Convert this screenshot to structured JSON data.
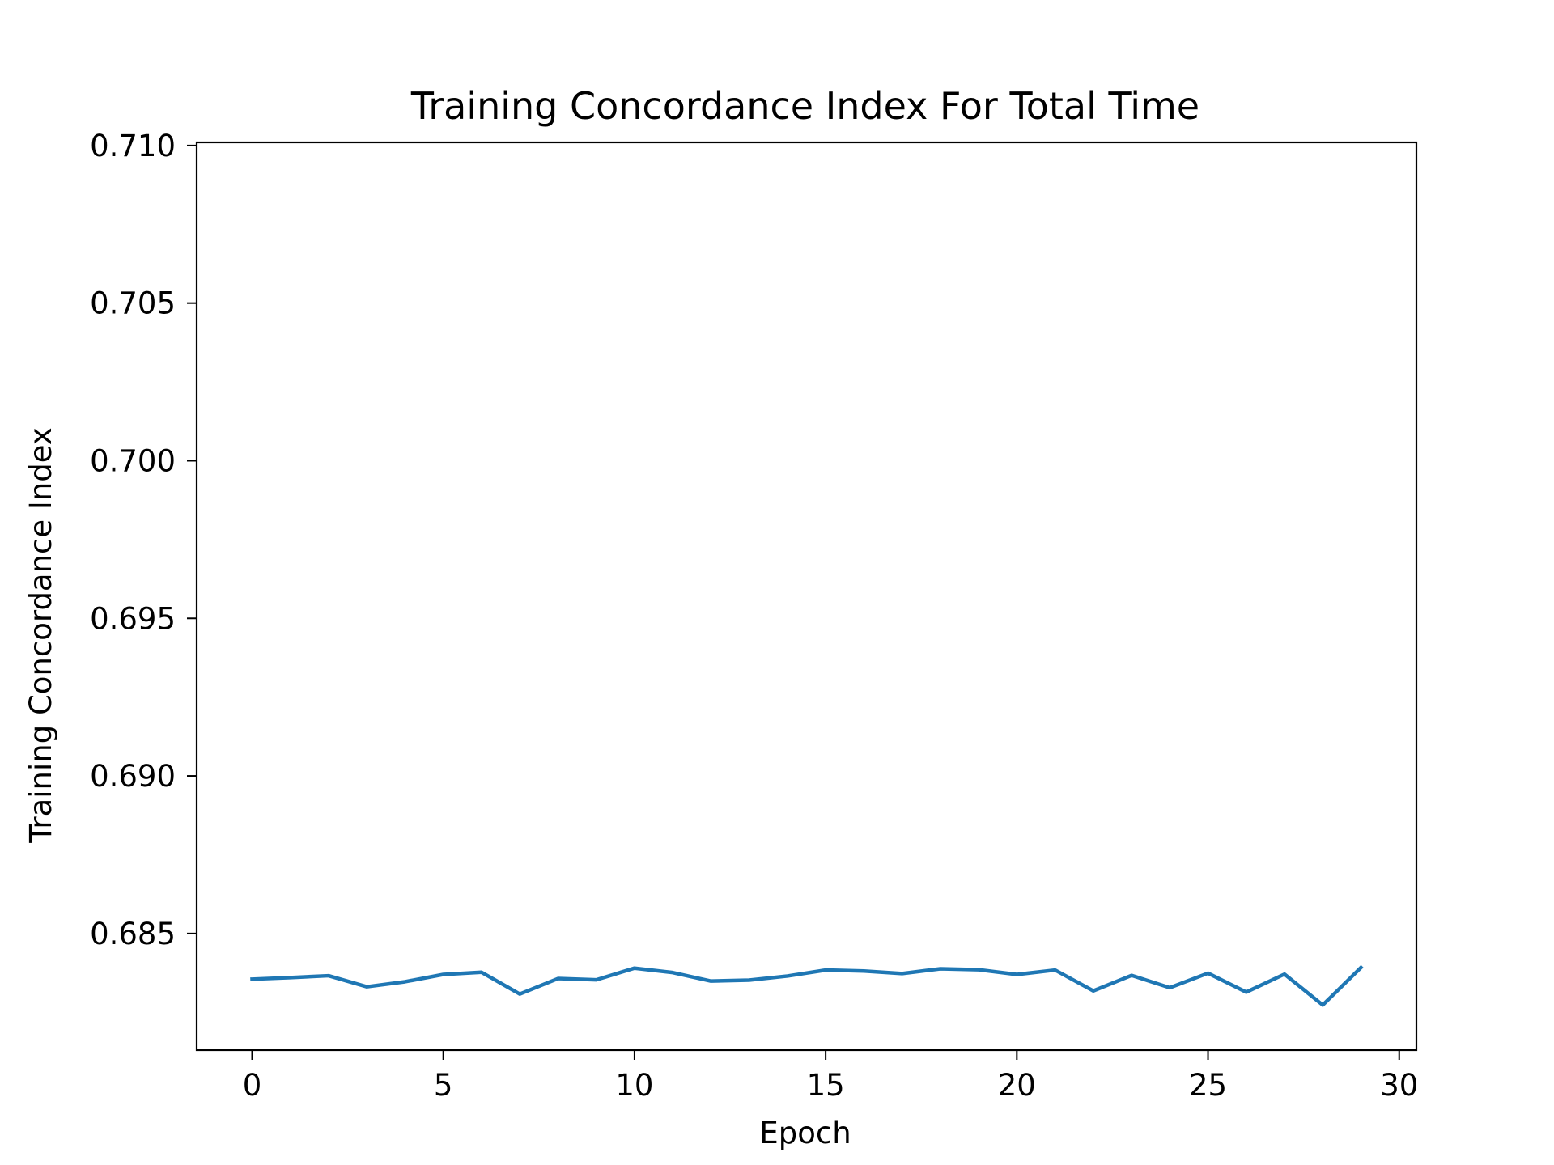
{
  "chart_data": {
    "type": "line",
    "title": "Training Concordance Index For Total Time",
    "xlabel": "Epoch",
    "ylabel": "Training Concordance Index",
    "xlim": [
      -1.45,
      30.45
    ],
    "ylim": [
      0.6813,
      0.7101
    ],
    "xticks": [
      0,
      5,
      10,
      15,
      20,
      25,
      30
    ],
    "xtick_labels": [
      "0",
      "5",
      "10",
      "15",
      "20",
      "25",
      "30"
    ],
    "yticks": [
      0.685,
      0.69,
      0.695,
      0.7,
      0.705,
      0.71
    ],
    "ytick_labels": [
      "0.685",
      "0.690",
      "0.695",
      "0.700",
      "0.705",
      "0.710"
    ],
    "grid": false,
    "series": [
      {
        "color": "#1f77b4",
        "x": [
          0,
          1,
          2,
          3,
          4,
          5,
          6,
          7,
          8,
          9,
          10,
          11,
          12,
          13,
          14,
          15,
          16,
          17,
          18,
          19,
          20,
          21,
          22,
          23,
          24,
          25,
          26,
          27,
          28,
          29
        ],
        "y": [
          0.68355,
          0.6836,
          0.68366,
          0.68331,
          0.68347,
          0.6837,
          0.68377,
          0.68308,
          0.68357,
          0.68353,
          0.6839,
          0.68376,
          0.68349,
          0.68352,
          0.68365,
          0.68384,
          0.68381,
          0.68373,
          0.68388,
          0.68385,
          0.6837,
          0.68384,
          0.68318,
          0.68367,
          0.68328,
          0.68374,
          0.68314,
          0.68371,
          0.68273,
          0.68392
        ]
      }
    ]
  }
}
